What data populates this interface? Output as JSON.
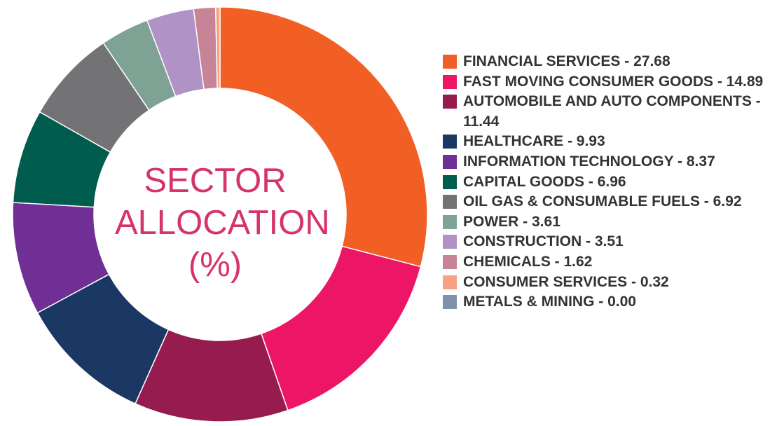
{
  "chart_data": {
    "type": "pie",
    "title_lines": [
      "SECTOR",
      "ALLOCATION",
      "(%)"
    ],
    "slices": [
      {
        "label": "FINANCIAL SERVICES - 27.68",
        "value": 27.68,
        "color": "#f15f25"
      },
      {
        "label": "FAST MOVING CONSUMER GOODS - 14.89",
        "value": 14.89,
        "color": "#ec1566"
      },
      {
        "label": "AUTOMOBILE AND AUTO COMPONENTS - 11.44",
        "value": 11.44,
        "color": "#961b4e"
      },
      {
        "label": "HEALTHCARE - 9.93",
        "value": 9.93,
        "color": "#1b3763"
      },
      {
        "label": "INFORMATION TECHNOLOGY - 8.37",
        "value": 8.37,
        "color": "#6f2f94"
      },
      {
        "label": "CAPITAL GOODS - 6.96",
        "value": 6.96,
        "color": "#005c4d"
      },
      {
        "label": "OIL GAS & CONSUMABLE FUELS - 6.92",
        "value": 6.92,
        "color": "#737375"
      },
      {
        "label": "POWER - 3.61",
        "value": 3.61,
        "color": "#7ea395"
      },
      {
        "label": "CONSTRUCTION - 3.51",
        "value": 3.51,
        "color": "#b092c6"
      },
      {
        "label": "CHEMICALS - 1.62",
        "value": 1.62,
        "color": "#c78497"
      },
      {
        "label": "CONSUMER SERVICES - 0.32",
        "value": 0.32,
        "color": "#f7a283"
      },
      {
        "label": "METALS & MINING - 0.00",
        "value": 0.0,
        "color": "#7f92ac"
      }
    ],
    "legend_position": "right"
  }
}
